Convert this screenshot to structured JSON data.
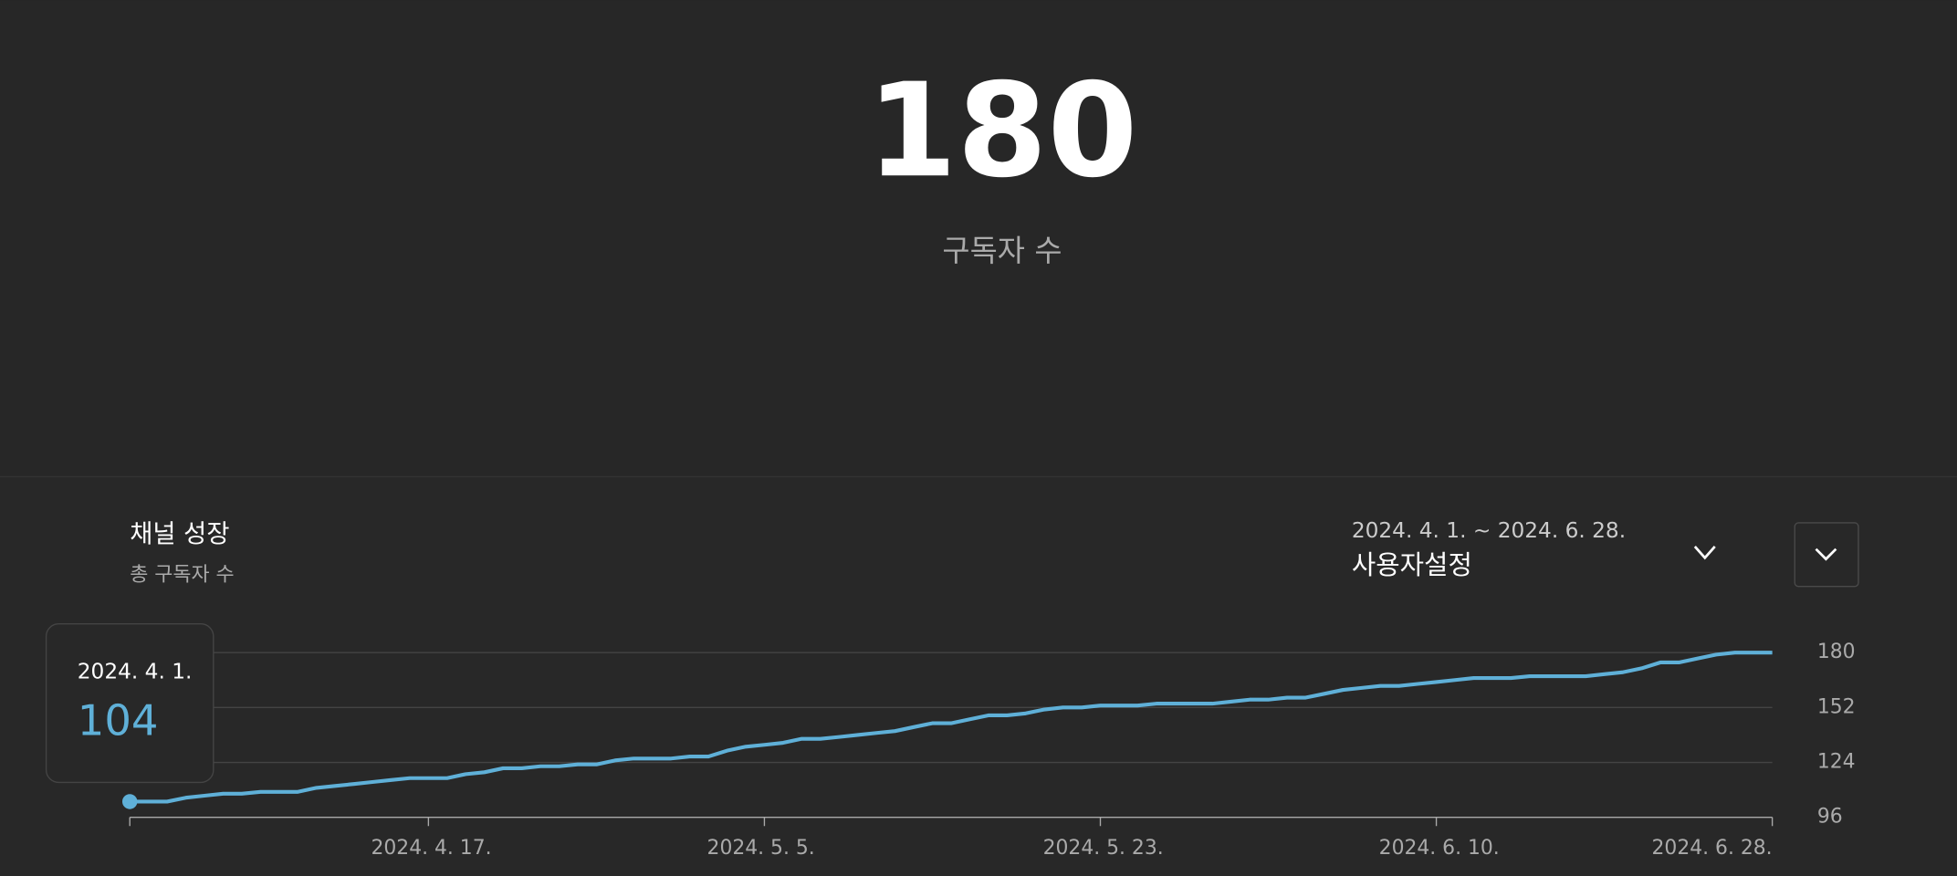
{
  "header": {
    "value": "180",
    "label": "구독자 수"
  },
  "controls": {
    "range": "2024. 4. 1. ~ 2024. 6. 28.",
    "preset": "사용자설정"
  },
  "chart_data": {
    "type": "line",
    "title": "채널 성장",
    "subtitle": "총 구독자 수",
    "x": [
      "2024-04-01",
      "2024-04-02",
      "2024-04-03",
      "2024-04-04",
      "2024-04-05",
      "2024-04-06",
      "2024-04-07",
      "2024-04-08",
      "2024-04-09",
      "2024-04-10",
      "2024-04-11",
      "2024-04-12",
      "2024-04-13",
      "2024-04-14",
      "2024-04-15",
      "2024-04-16",
      "2024-04-17",
      "2024-04-18",
      "2024-04-19",
      "2024-04-20",
      "2024-04-21",
      "2024-04-22",
      "2024-04-23",
      "2024-04-24",
      "2024-04-25",
      "2024-04-26",
      "2024-04-27",
      "2024-04-28",
      "2024-04-29",
      "2024-04-30",
      "2024-05-01",
      "2024-05-02",
      "2024-05-03",
      "2024-05-04",
      "2024-05-05",
      "2024-05-06",
      "2024-05-07",
      "2024-05-08",
      "2024-05-09",
      "2024-05-10",
      "2024-05-11",
      "2024-05-12",
      "2024-05-13",
      "2024-05-14",
      "2024-05-15",
      "2024-05-16",
      "2024-05-17",
      "2024-05-18",
      "2024-05-19",
      "2024-05-20",
      "2024-05-21",
      "2024-05-22",
      "2024-05-23",
      "2024-05-24",
      "2024-05-25",
      "2024-05-26",
      "2024-05-27",
      "2024-05-28",
      "2024-05-29",
      "2024-05-30",
      "2024-05-31",
      "2024-06-01",
      "2024-06-02",
      "2024-06-03",
      "2024-06-04",
      "2024-06-05",
      "2024-06-06",
      "2024-06-07",
      "2024-06-08",
      "2024-06-09",
      "2024-06-10",
      "2024-06-11",
      "2024-06-12",
      "2024-06-13",
      "2024-06-14",
      "2024-06-15",
      "2024-06-16",
      "2024-06-17",
      "2024-06-18",
      "2024-06-19",
      "2024-06-20",
      "2024-06-21",
      "2024-06-22",
      "2024-06-23",
      "2024-06-24",
      "2024-06-25",
      "2024-06-26",
      "2024-06-27",
      "2024-06-28"
    ],
    "series": [
      {
        "color": "#5fb0d8",
        "values": [
          104,
          104,
          104,
          106,
          107,
          108,
          108,
          109,
          109,
          109,
          111,
          112,
          113,
          114,
          115,
          116,
          116,
          116,
          118,
          119,
          121,
          121,
          122,
          122,
          123,
          123,
          125,
          126,
          126,
          126,
          127,
          127,
          130,
          132,
          133,
          134,
          136,
          136,
          137,
          138,
          139,
          140,
          142,
          144,
          144,
          146,
          148,
          148,
          149,
          151,
          152,
          152,
          153,
          153,
          153,
          154,
          154,
          154,
          154,
          155,
          156,
          156,
          157,
          157,
          159,
          161,
          162,
          163,
          163,
          164,
          165,
          166,
          167,
          167,
          167,
          168,
          168,
          168,
          168,
          169,
          170,
          172,
          175,
          175,
          177,
          179,
          180,
          180,
          180
        ]
      }
    ],
    "xlim": [
      "2024-04-01",
      "2024-06-28"
    ],
    "xticks": [
      {
        "value": "2024-04-17",
        "label": "2024. 4. 17."
      },
      {
        "value": "2024-05-05",
        "label": "2024. 5. 5."
      },
      {
        "value": "2024-05-23",
        "label": "2024. 5. 23."
      },
      {
        "value": "2024-06-10",
        "label": "2024. 6. 10."
      },
      {
        "value": "2024-06-28",
        "label": "2024. 6. 28."
      }
    ],
    "ylim": [
      96,
      180
    ],
    "yticks": [
      96,
      124,
      152,
      180
    ],
    "grid": true,
    "tooltip": {
      "date": "2024. 4. 1.",
      "value": 104
    }
  }
}
